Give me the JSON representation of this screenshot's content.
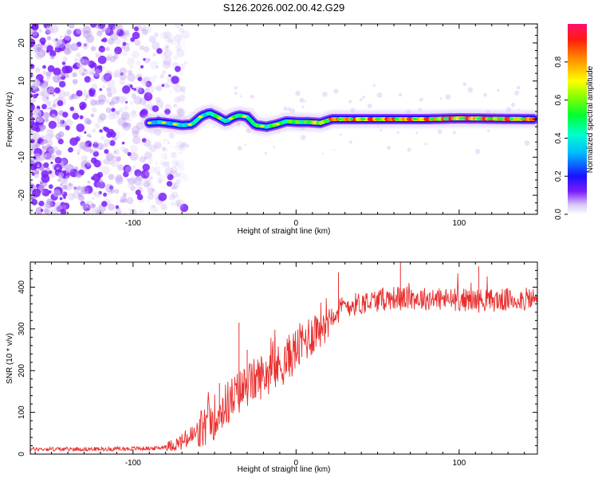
{
  "title": "S126.2026.002.00.42.G29",
  "chart_data": [
    {
      "type": "heatmap",
      "name": "spectrogram",
      "xlabel": "Height of straight line (km)",
      "ylabel": "Frequency (Hz)",
      "xlim": [
        -163,
        148
      ],
      "ylim": [
        -25,
        25
      ],
      "xticks": [
        -100,
        0,
        100
      ],
      "yticks": [
        -20,
        -10,
        0,
        10,
        20
      ],
      "grid": false,
      "noise_region_x": [
        -163,
        -82
      ],
      "signal_start_x": -90,
      "signal_track": [
        {
          "x": -90,
          "y": -1.0
        },
        {
          "x": -84,
          "y": -0.8
        },
        {
          "x": -76,
          "y": -1.2
        },
        {
          "x": -70,
          "y": -1.6
        },
        {
          "x": -64,
          "y": -1.4
        },
        {
          "x": -58,
          "y": 0.8
        },
        {
          "x": -53,
          "y": 1.6
        },
        {
          "x": -48,
          "y": 0.6
        },
        {
          "x": -43,
          "y": -0.6
        },
        {
          "x": -39,
          "y": 0.4
        },
        {
          "x": -35,
          "y": 1.0
        },
        {
          "x": -30,
          "y": 0.6
        },
        {
          "x": -25,
          "y": -1.6
        },
        {
          "x": -18,
          "y": -2.0
        },
        {
          "x": -12,
          "y": -1.4
        },
        {
          "x": -6,
          "y": -0.6
        },
        {
          "x": 2,
          "y": -0.8
        },
        {
          "x": 8,
          "y": -0.8
        },
        {
          "x": 15,
          "y": -1.0
        },
        {
          "x": 22,
          "y": 0.0
        },
        {
          "x": 40,
          "y": 0.0
        },
        {
          "x": 60,
          "y": 0.0
        },
        {
          "x": 80,
          "y": 0.0
        },
        {
          "x": 100,
          "y": 0.2
        },
        {
          "x": 120,
          "y": 0.1
        },
        {
          "x": 146,
          "y": 0.0
        }
      ],
      "amplitude_profile": [
        {
          "x": -90,
          "a": 0.35
        },
        {
          "x": -70,
          "a": 0.45
        },
        {
          "x": -50,
          "a": 0.55
        },
        {
          "x": -30,
          "a": 0.55
        },
        {
          "x": -10,
          "a": 0.6
        },
        {
          "x": 10,
          "a": 0.7
        },
        {
          "x": 25,
          "a": 0.95
        },
        {
          "x": 60,
          "a": 0.97
        },
        {
          "x": 100,
          "a": 0.95
        },
        {
          "x": 146,
          "a": 0.95
        }
      ],
      "colorbar": {
        "label": "Normalized spectral amplitude",
        "range": [
          0.0,
          1.0
        ],
        "ticks": [
          "0.0",
          "0.2",
          "0.4",
          "0.6",
          "0.8"
        ],
        "tick_values": [
          0.0,
          0.2,
          0.4,
          0.6,
          0.8
        ]
      }
    },
    {
      "type": "line",
      "name": "snr",
      "xlabel": "Height of straight line (km)",
      "ylabel": "SNR (10 * v/v)",
      "xlim": [
        -163,
        148
      ],
      "ylim": [
        0,
        460
      ],
      "xticks": [
        -100,
        0,
        100
      ],
      "yticks": [
        0,
        100,
        200,
        300,
        400
      ],
      "grid": false,
      "series_color": "#e8302f",
      "trend": [
        {
          "x": -163,
          "y": 12
        },
        {
          "x": -120,
          "y": 12
        },
        {
          "x": -85,
          "y": 14
        },
        {
          "x": -72,
          "y": 25
        },
        {
          "x": -60,
          "y": 50
        },
        {
          "x": -50,
          "y": 90
        },
        {
          "x": -40,
          "y": 130
        },
        {
          "x": -30,
          "y": 165
        },
        {
          "x": -20,
          "y": 190
        },
        {
          "x": -10,
          "y": 210
        },
        {
          "x": 0,
          "y": 250
        },
        {
          "x": 10,
          "y": 290
        },
        {
          "x": 20,
          "y": 330
        },
        {
          "x": 30,
          "y": 355
        },
        {
          "x": 45,
          "y": 365
        },
        {
          "x": 60,
          "y": 375
        },
        {
          "x": 80,
          "y": 372
        },
        {
          "x": 100,
          "y": 370
        },
        {
          "x": 120,
          "y": 368
        },
        {
          "x": 148,
          "y": 372
        }
      ],
      "peaks": [
        {
          "x": -35,
          "y": 315
        },
        {
          "x": -30,
          "y": 250
        },
        {
          "x": -47,
          "y": 170
        },
        {
          "x": -13,
          "y": 280
        },
        {
          "x": 26,
          "y": 435
        },
        {
          "x": 64,
          "y": 462
        },
        {
          "x": 112,
          "y": 450
        }
      ]
    }
  ]
}
